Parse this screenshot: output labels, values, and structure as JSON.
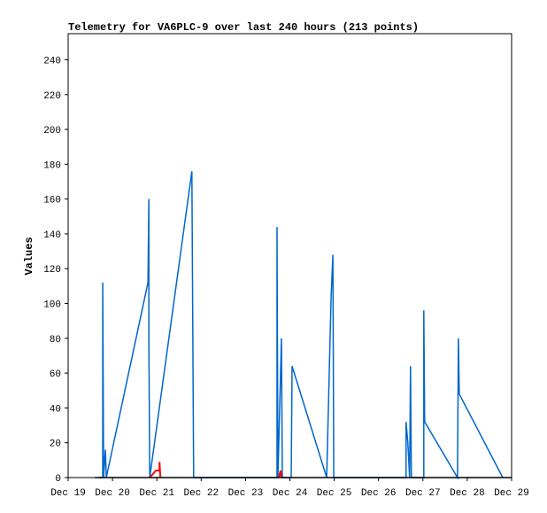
{
  "chart_data": {
    "type": "line",
    "title": "Telemetry for VA6PLC-9 over last 240 hours (213 points)",
    "y_label": "Values",
    "xlim": [
      0,
      10
    ],
    "xticks": [
      {
        "value": 0,
        "label": "Dec 19"
      },
      {
        "value": 1,
        "label": "Dec 20"
      },
      {
        "value": 2,
        "label": "Dec 21"
      },
      {
        "value": 3,
        "label": "Dec 22"
      },
      {
        "value": 4,
        "label": "Dec 23"
      },
      {
        "value": 5,
        "label": "Dec 24"
      },
      {
        "value": 6,
        "label": "Dec 25"
      },
      {
        "value": 7,
        "label": "Dec 26"
      },
      {
        "value": 8,
        "label": "Dec 27"
      },
      {
        "value": 9,
        "label": "Dec 28"
      },
      {
        "value": 10,
        "label": "Dec 29"
      }
    ],
    "ylim": [
      0,
      255
    ],
    "yticks": [
      0,
      20,
      40,
      60,
      80,
      100,
      120,
      140,
      160,
      180,
      200,
      220,
      240
    ],
    "grid": false,
    "series": [
      {
        "color": "#0066cc",
        "x": [
          0.7,
          0.78,
          0.78,
          0.8,
          0.84,
          0.86,
          1.8,
          1.82,
          1.82,
          1.84,
          2.79,
          2.81,
          2.83,
          4.71,
          4.71,
          4.73,
          4.77,
          4.81,
          4.83,
          5.03,
          5.05,
          5.83,
          5.93,
          5.97,
          5.99,
          7.62,
          7.62,
          7.66,
          7.7,
          7.72,
          7.74,
          8.02,
          8.02,
          8.04,
          8.78,
          8.8,
          8.82,
          9.8
        ],
        "values": [
          0,
          0,
          112,
          0,
          16,
          0,
          112,
          160,
          80,
          0,
          176,
          88,
          0,
          0,
          144,
          0,
          40,
          80,
          0,
          0,
          64,
          0,
          104,
          128,
          0,
          0,
          32,
          20,
          0,
          64,
          0,
          0,
          96,
          32,
          0,
          80,
          48,
          0
        ]
      },
      {
        "color": "#ff0000",
        "x": [
          1.84,
          1.98,
          2.06,
          2.06,
          2.08,
          null,
          4.75,
          4.79,
          4.81
        ],
        "values": [
          0,
          4,
          4,
          9,
          0,
          null,
          0,
          4,
          0
        ]
      },
      {
        "color": "#000000",
        "x": [
          0.6,
          10
        ],
        "values": [
          0,
          0
        ]
      }
    ]
  }
}
